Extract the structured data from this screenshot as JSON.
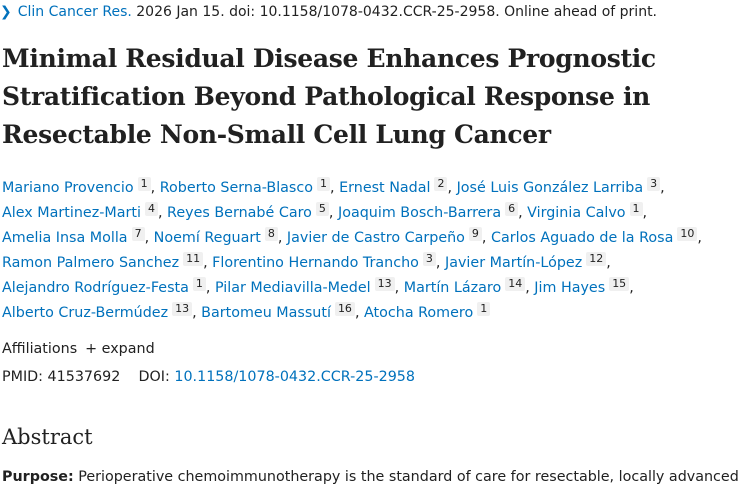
{
  "citation": {
    "journal": "Clin Cancer Res.",
    "rest": " 2026 Jan 15. doi: 10.1158/1078-0432.CCR-25-2958. Online ahead of print."
  },
  "title": "Minimal Residual Disease Enhances Prognostic Stratification Beyond Pathological Response in Resectable Non-Small Cell Lung Cancer",
  "author_lines": [
    [
      {
        "name": "Mariano Provencio",
        "sup": "1"
      },
      {
        "name": "Roberto Serna-Blasco",
        "sup": "1"
      },
      {
        "name": "Ernest Nadal",
        "sup": "2"
      },
      {
        "name": "José Luis González Larriba",
        "sup": "3"
      }
    ],
    [
      {
        "name": "Alex Martinez-Marti",
        "sup": "4"
      },
      {
        "name": "Reyes Bernabé Caro",
        "sup": "5"
      },
      {
        "name": "Joaquim Bosch-Barrera",
        "sup": "6"
      },
      {
        "name": "Virginia Calvo",
        "sup": "1"
      }
    ],
    [
      {
        "name": "Amelia Insa Molla",
        "sup": "7"
      },
      {
        "name": "Noemí Reguart",
        "sup": "8"
      },
      {
        "name": "Javier de Castro Carpeño",
        "sup": "9"
      },
      {
        "name": "Carlos Aguado de la Rosa",
        "sup": "10"
      }
    ],
    [
      {
        "name": "Ramon Palmero Sanchez",
        "sup": "11"
      },
      {
        "name": "Florentino Hernando Trancho",
        "sup": "3"
      },
      {
        "name": "Javier Martín-López",
        "sup": "12"
      }
    ],
    [
      {
        "name": "Alejandro Rodríguez-Festa",
        "sup": "1"
      },
      {
        "name": "Pilar Mediavilla-Medel",
        "sup": "13"
      },
      {
        "name": "Martín Lázaro",
        "sup": "14"
      },
      {
        "name": "Jim Hayes",
        "sup": "15"
      }
    ],
    [
      {
        "name": "Alberto Cruz-Bermúdez",
        "sup": "13"
      },
      {
        "name": "Bartomeu Massutí",
        "sup": "16"
      },
      {
        "name": "Atocha Romero",
        "sup": "1"
      }
    ]
  ],
  "affiliations": {
    "label": "Affiliations",
    "expand": "+ expand"
  },
  "ids": {
    "pmid_label": "PMID:",
    "pmid": "41537692",
    "doi_label": "DOI:",
    "doi": "10.1158/1078-0432.CCR-25-2958"
  },
  "abstract": {
    "heading": "Abstract",
    "purpose_label": "Purpose:",
    "purpose_text": " Perioperative chemoimmunotherapy is the standard of care for resectable, locally advanced"
  }
}
